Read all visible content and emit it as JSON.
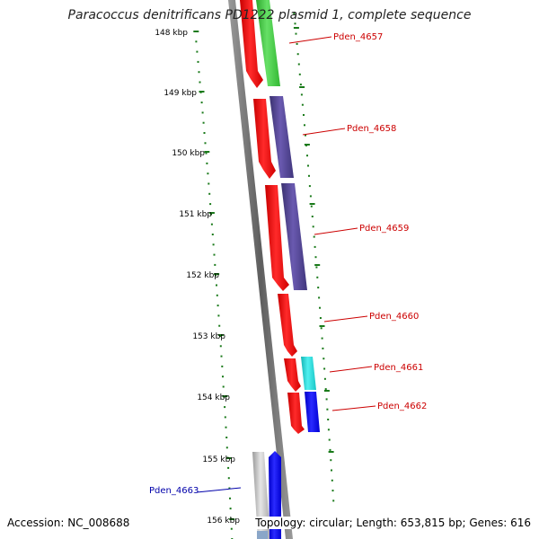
{
  "title": "Paracoccus denitrificans PD1222 plasmid 1, complete sequence",
  "footer": {
    "accession": "Accession: NC_008688",
    "topology": "Topology: circular; Length: 653,815 bp; Genes: 616"
  },
  "colors": {
    "backbone": "#7a7a7a",
    "scale_ticks": "#1a7a1a",
    "red_track": "#ff0000",
    "gene_label_red": "#cc0000",
    "gene_label_blue": "#0000aa"
  },
  "scale_labels": [
    "148 kbp",
    "149 kbp",
    "150 kbp",
    "151 kbp",
    "152 kbp",
    "153 kbp",
    "154 kbp",
    "155 kbp",
    "156 kbp"
  ],
  "gene_labels": [
    {
      "text": "Pden_4657",
      "color": "#cc0000"
    },
    {
      "text": "Pden_4658",
      "color": "#cc0000"
    },
    {
      "text": "Pden_4659",
      "color": "#cc0000"
    },
    {
      "text": "Pden_4660",
      "color": "#cc0000"
    },
    {
      "text": "Pden_4661",
      "color": "#cc0000"
    },
    {
      "text": "Pden_4662",
      "color": "#cc0000"
    },
    {
      "text": "Pden_4663",
      "color": "#0000aa"
    }
  ]
}
